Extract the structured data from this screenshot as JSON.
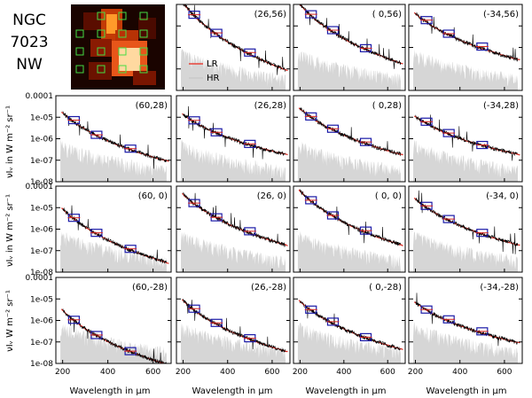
{
  "figure": {
    "title_lines": [
      "NGC",
      "7023",
      "NW"
    ],
    "xlabel": "Wavelength in μm",
    "ylabel_rows": [
      "νIᵥ in W m⁻² sr⁻¹",
      "νIᵥ in W m⁻² sr⁻¹",
      "νIᵥ W m⁻² sr⁻¹"
    ],
    "legend": [
      {
        "label": "LR",
        "color": "#e8433a"
      },
      {
        "label": "HR",
        "color": "#c8c8c8"
      }
    ],
    "colors": {
      "observed": "#000000",
      "model": "#d9251c",
      "fill": "#d6d6d6",
      "photometry_blue": "#1a1aa8",
      "photometry_red": "#d9251c"
    },
    "thumbnail": {
      "background": "#1a0400",
      "marker_color": "#44dd44"
    }
  },
  "chart_data": {
    "type": "line",
    "xlim": [
      170,
      680
    ],
    "ylim": [
      1e-08,
      0.0001
    ],
    "yscale": "log",
    "x_ticks": [
      "200",
      "400",
      "600"
    ],
    "y_ticks": [
      "0.0001",
      "1e-05",
      "1e-06",
      "1e-07",
      "1e-08"
    ],
    "panels": [
      {
        "label": "(26,56)",
        "row": 0,
        "col": 1,
        "y250": 3e-05,
        "y650": 1e-07,
        "hasTicks": false,
        "legend": true
      },
      {
        "label": "( 0,56)",
        "row": 0,
        "col": 2,
        "y250": 3e-05,
        "y650": 2e-07,
        "hasTicks": false
      },
      {
        "label": "(-34,56)",
        "row": 0,
        "col": 3,
        "y250": 1.5e-05,
        "y650": 3e-07,
        "hasTicks": false
      },
      {
        "label": "(60,28)",
        "row": 1,
        "col": 0,
        "y250": 6e-06,
        "y650": 1e-07,
        "hasTicks": true
      },
      {
        "label": "(26,28)",
        "row": 1,
        "col": 1,
        "y250": 6e-06,
        "y650": 2e-07,
        "hasTicks": false
      },
      {
        "label": "( 0,28)",
        "row": 1,
        "col": 2,
        "y250": 1e-05,
        "y650": 2e-07,
        "hasTicks": false
      },
      {
        "label": "(-34,28)",
        "row": 1,
        "col": 3,
        "y250": 5e-06,
        "y650": 2e-07,
        "hasTicks": false
      },
      {
        "label": "(60, 0)",
        "row": 2,
        "col": 0,
        "y250": 3e-06,
        "y650": 3e-08,
        "hasTicks": true
      },
      {
        "label": "(26, 0)",
        "row": 2,
        "col": 1,
        "y250": 1.5e-05,
        "y650": 2e-07,
        "hasTicks": false
      },
      {
        "label": "( 0, 0)",
        "row": 2,
        "col": 2,
        "y250": 2e-05,
        "y650": 2e-07,
        "hasTicks": false
      },
      {
        "label": "(-34, 0)",
        "row": 2,
        "col": 3,
        "y250": 1e-05,
        "y650": 2e-07,
        "hasTicks": false
      },
      {
        "label": "(60,-28)",
        "row": 3,
        "col": 0,
        "y250": 1e-06,
        "y650": 1e-08,
        "hasTicks": true
      },
      {
        "label": "(26,-28)",
        "row": 3,
        "col": 1,
        "y250": 3e-06,
        "y650": 4e-08,
        "hasTicks": false
      },
      {
        "label": "( 0,-28)",
        "row": 3,
        "col": 2,
        "y250": 3e-06,
        "y650": 5e-08,
        "hasTicks": false
      },
      {
        "label": "(-34,-28)",
        "row": 3,
        "col": 3,
        "y250": 3e-06,
        "y650": 1e-07,
        "hasTicks": false
      }
    ]
  }
}
